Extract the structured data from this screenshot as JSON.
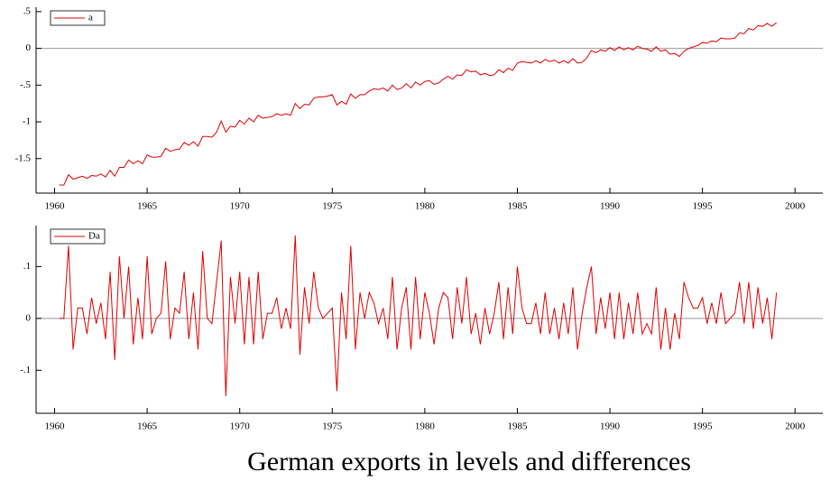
{
  "caption": "German exports in levels and differences",
  "chart_data": [
    {
      "type": "line",
      "x": [
        1960.25,
        1960.5,
        1960.75,
        1961,
        1961.25,
        1961.5,
        1961.75,
        1962,
        1962.25,
        1962.5,
        1962.75,
        1963,
        1963.25,
        1963.5,
        1963.75,
        1964,
        1964.25,
        1964.5,
        1964.75,
        1965,
        1965.25,
        1965.5,
        1965.75,
        1966,
        1966.25,
        1966.5,
        1966.75,
        1967,
        1967.25,
        1967.5,
        1967.75,
        1968,
        1968.25,
        1968.5,
        1968.75,
        1969,
        1969.25,
        1969.5,
        1969.75,
        1970,
        1970.25,
        1970.5,
        1970.75,
        1971,
        1971.25,
        1971.5,
        1971.75,
        1972,
        1972.25,
        1972.5,
        1972.75,
        1973,
        1973.25,
        1973.5,
        1973.75,
        1974,
        1974.25,
        1974.5,
        1974.75,
        1975,
        1975.25,
        1975.5,
        1975.75,
        1976,
        1976.25,
        1976.5,
        1976.75,
        1977,
        1977.25,
        1977.5,
        1977.75,
        1978,
        1978.25,
        1978.5,
        1978.75,
        1979,
        1979.25,
        1979.5,
        1979.75,
        1980,
        1980.25,
        1980.5,
        1980.75,
        1981,
        1981.25,
        1981.5,
        1981.75,
        1982,
        1982.25,
        1982.5,
        1982.75,
        1983,
        1983.25,
        1983.5,
        1983.75,
        1984,
        1984.25,
        1984.5,
        1984.75,
        1985,
        1985.25,
        1985.5,
        1985.75,
        1986,
        1986.25,
        1986.5,
        1986.75,
        1987,
        1987.25,
        1987.5,
        1987.75,
        1988,
        1988.25,
        1988.5,
        1988.75,
        1989,
        1989.25,
        1989.5,
        1989.75,
        1990,
        1990.25,
        1990.5,
        1990.75,
        1991,
        1991.25,
        1991.5,
        1991.75,
        1992,
        1992.25,
        1992.5,
        1992.75,
        1993,
        1993.25,
        1993.5,
        1993.75,
        1994,
        1994.25,
        1994.5,
        1994.75,
        1995,
        1995.25,
        1995.5,
        1995.75,
        1996,
        1996.25,
        1996.5,
        1996.75,
        1997,
        1997.25,
        1997.5,
        1997.75,
        1998,
        1998.25,
        1998.5,
        1998.75,
        1999
      ],
      "series": [
        {
          "name": "a",
          "color": "#e00000",
          "values": [
            -1.86,
            -1.86,
            -1.72,
            -1.78,
            -1.76,
            -1.74,
            -1.77,
            -1.73,
            -1.74,
            -1.71,
            -1.75,
            -1.66,
            -1.74,
            -1.62,
            -1.62,
            -1.52,
            -1.57,
            -1.53,
            -1.57,
            -1.45,
            -1.48,
            -1.48,
            -1.47,
            -1.36,
            -1.4,
            -1.38,
            -1.37,
            -1.28,
            -1.32,
            -1.27,
            -1.33,
            -1.2,
            -1.2,
            -1.21,
            -1.14,
            -0.99,
            -1.14,
            -1.06,
            -1.07,
            -0.98,
            -1.03,
            -0.95,
            -1.0,
            -0.91,
            -0.95,
            -0.94,
            -0.93,
            -0.89,
            -0.91,
            -0.89,
            -0.91,
            -0.75,
            -0.82,
            -0.76,
            -0.77,
            -0.68,
            -0.66,
            -0.66,
            -0.65,
            -0.63,
            -0.77,
            -0.72,
            -0.76,
            -0.62,
            -0.68,
            -0.63,
            -0.63,
            -0.58,
            -0.55,
            -0.56,
            -0.54,
            -0.58,
            -0.5,
            -0.56,
            -0.54,
            -0.48,
            -0.54,
            -0.46,
            -0.5,
            -0.45,
            -0.44,
            -0.49,
            -0.47,
            -0.42,
            -0.38,
            -0.42,
            -0.36,
            -0.37,
            -0.29,
            -0.32,
            -0.31,
            -0.36,
            -0.34,
            -0.37,
            -0.36,
            -0.29,
            -0.33,
            -0.27,
            -0.3,
            -0.2,
            -0.18,
            -0.19,
            -0.2,
            -0.17,
            -0.2,
            -0.15,
            -0.18,
            -0.16,
            -0.2,
            -0.17,
            -0.2,
            -0.14,
            -0.2,
            -0.19,
            -0.13,
            -0.03,
            -0.06,
            -0.02,
            -0.04,
            0.01,
            -0.03,
            0.02,
            -0.02,
            0.01,
            -0.02,
            0.03,
            0.0,
            -0.01,
            -0.04,
            0.02,
            -0.04,
            -0.02,
            -0.08,
            -0.07,
            -0.11,
            -0.04,
            0.0,
            0.02,
            0.04,
            0.08,
            0.07,
            0.1,
            0.09,
            0.14,
            0.13,
            0.13,
            0.14,
            0.21,
            0.2,
            0.27,
            0.25,
            0.31,
            0.3,
            0.34,
            0.3,
            0.35
          ]
        }
      ],
      "xlim": [
        1959,
        2001.5
      ],
      "xticks": [
        1960,
        1965,
        1970,
        1975,
        1980,
        1985,
        1990,
        1995,
        2000
      ],
      "ylim": [
        -1.97,
        0.56
      ],
      "yticks": [
        {
          "value": 0.5,
          "label": ".5"
        },
        0,
        {
          "value": -0.5,
          "label": "-.5"
        },
        -1,
        {
          "value": -1.5,
          "label": "-1.5"
        }
      ],
      "zero_line": true,
      "legend": "upper left"
    },
    {
      "type": "line",
      "x": [
        1960.25,
        1960.5,
        1960.75,
        1961,
        1961.25,
        1961.5,
        1961.75,
        1962,
        1962.25,
        1962.5,
        1962.75,
        1963,
        1963.25,
        1963.5,
        1963.75,
        1964,
        1964.25,
        1964.5,
        1964.75,
        1965,
        1965.25,
        1965.5,
        1965.75,
        1966,
        1966.25,
        1966.5,
        1966.75,
        1967,
        1967.25,
        1967.5,
        1967.75,
        1968,
        1968.25,
        1968.5,
        1968.75,
        1969,
        1969.25,
        1969.5,
        1969.75,
        1970,
        1970.25,
        1970.5,
        1970.75,
        1971,
        1971.25,
        1971.5,
        1971.75,
        1972,
        1972.25,
        1972.5,
        1972.75,
        1973,
        1973.25,
        1973.5,
        1973.75,
        1974,
        1974.25,
        1974.5,
        1974.75,
        1975,
        1975.25,
        1975.5,
        1975.75,
        1976,
        1976.25,
        1976.5,
        1976.75,
        1977,
        1977.25,
        1977.5,
        1977.75,
        1978,
        1978.25,
        1978.5,
        1978.75,
        1979,
        1979.25,
        1979.5,
        1979.75,
        1980,
        1980.25,
        1980.5,
        1980.75,
        1981,
        1981.25,
        1981.5,
        1981.75,
        1982,
        1982.25,
        1982.5,
        1982.75,
        1983,
        1983.25,
        1983.5,
        1983.75,
        1984,
        1984.25,
        1984.5,
        1984.75,
        1985,
        1985.25,
        1985.5,
        1985.75,
        1986,
        1986.25,
        1986.5,
        1986.75,
        1987,
        1987.25,
        1987.5,
        1987.75,
        1988,
        1988.25,
        1988.5,
        1988.75,
        1989,
        1989.25,
        1989.5,
        1989.75,
        1990,
        1990.25,
        1990.5,
        1990.75,
        1991,
        1991.25,
        1991.5,
        1991.75,
        1992,
        1992.25,
        1992.5,
        1992.75,
        1993,
        1993.25,
        1993.5,
        1993.75,
        1994,
        1994.25,
        1994.5,
        1994.75,
        1995,
        1995.25,
        1995.5,
        1995.75,
        1996,
        1996.25,
        1996.5,
        1996.75,
        1997,
        1997.25,
        1997.5,
        1997.75,
        1998,
        1998.25,
        1998.5,
        1998.75,
        1999
      ],
      "series": [
        {
          "name": "Da",
          "color": "#e00000",
          "values": [
            0,
            0,
            0.14,
            -0.06,
            0.02,
            0.02,
            -0.03,
            0.04,
            -0.01,
            0.03,
            -0.04,
            0.09,
            -0.08,
            0.12,
            0,
            0.1,
            -0.05,
            0.04,
            -0.04,
            0.12,
            -0.03,
            0,
            0.01,
            0.11,
            -0.04,
            0.02,
            0.01,
            0.09,
            -0.04,
            0.05,
            -0.06,
            0.13,
            0,
            -0.01,
            0.07,
            0.15,
            -0.15,
            0.08,
            -0.01,
            0.09,
            -0.05,
            0.08,
            -0.05,
            0.09,
            -0.04,
            0.01,
            0.01,
            0.04,
            -0.02,
            0.02,
            -0.02,
            0.16,
            -0.07,
            0.06,
            -0.01,
            0.09,
            0.02,
            0,
            0.01,
            0.02,
            -0.14,
            0.05,
            -0.04,
            0.14,
            -0.06,
            0.05,
            0,
            0.05,
            0.03,
            -0.01,
            0.02,
            -0.04,
            0.08,
            -0.06,
            0.02,
            0.06,
            -0.06,
            0.08,
            -0.04,
            0.05,
            0.01,
            -0.05,
            0.02,
            0.05,
            0.04,
            -0.04,
            0.06,
            -0.01,
            0.08,
            -0.03,
            0.01,
            -0.05,
            0.02,
            -0.03,
            0.01,
            0.07,
            -0.04,
            0.06,
            -0.03,
            0.1,
            0.02,
            -0.01,
            -0.01,
            0.03,
            -0.03,
            0.05,
            -0.03,
            0.02,
            -0.04,
            0.03,
            -0.03,
            0.06,
            -0.06,
            0.01,
            0.06,
            0.1,
            -0.03,
            0.04,
            -0.02,
            0.05,
            -0.04,
            0.05,
            -0.04,
            0.03,
            -0.03,
            0.05,
            -0.03,
            -0.01,
            -0.03,
            0.06,
            -0.06,
            0.02,
            -0.06,
            0.01,
            -0.04,
            0.07,
            0.04,
            0.02,
            0.02,
            0.04,
            -0.01,
            0.03,
            -0.01,
            0.05,
            -0.01,
            0,
            0.01,
            0.07,
            -0.01,
            0.07,
            -0.02,
            0.06,
            -0.01,
            0.04,
            -0.04,
            0.05
          ]
        }
      ],
      "xlim": [
        1959,
        2001.5
      ],
      "xticks": [
        1960,
        1965,
        1970,
        1975,
        1980,
        1985,
        1990,
        1995,
        2000
      ],
      "ylim": [
        -0.183,
        0.179
      ],
      "yticks": [
        {
          "value": 0.1,
          "label": ".1"
        },
        0,
        {
          "value": -0.1,
          "label": "-.1"
        }
      ],
      "zero_line": true,
      "legend": "upper left"
    }
  ]
}
